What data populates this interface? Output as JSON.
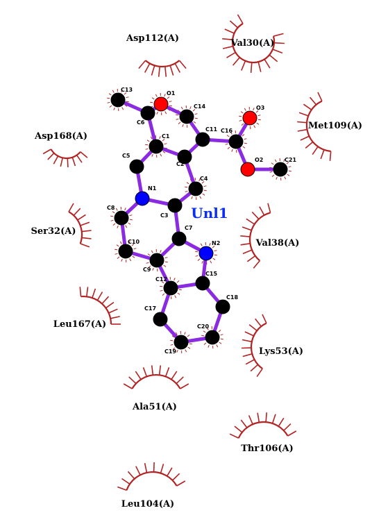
{
  "ligand": {
    "name": "Unl1",
    "color": "#0b2ff0"
  },
  "colors": {
    "bond": "#8a2be2",
    "carbon": "#000000",
    "oxygen": "#ff0000",
    "nitrogen": "#0000ff",
    "hydrophobic": "#b22222"
  },
  "atoms": [
    {
      "id": "C13",
      "label": "C13",
      "element": "C"
    },
    {
      "id": "O1",
      "label": "O1",
      "element": "O"
    },
    {
      "id": "C14",
      "label": "C14",
      "element": "C"
    },
    {
      "id": "C6",
      "label": "C6",
      "element": "C"
    },
    {
      "id": "C1",
      "label": "C1",
      "element": "C"
    },
    {
      "id": "C11",
      "label": "C11",
      "element": "C"
    },
    {
      "id": "C16",
      "label": "C16",
      "element": "C"
    },
    {
      "id": "O3",
      "label": "O3",
      "element": "O"
    },
    {
      "id": "O2",
      "label": "O2",
      "element": "O"
    },
    {
      "id": "C21",
      "label": "C21",
      "element": "C"
    },
    {
      "id": "C5",
      "label": "C5",
      "element": "C"
    },
    {
      "id": "C2",
      "label": "C2",
      "element": "C"
    },
    {
      "id": "C4",
      "label": "C4",
      "element": "C"
    },
    {
      "id": "N1",
      "label": "N1",
      "element": "N"
    },
    {
      "id": "C3",
      "label": "C3",
      "element": "C"
    },
    {
      "id": "C8",
      "label": "C8",
      "element": "C"
    },
    {
      "id": "C7",
      "label": "C7",
      "element": "C"
    },
    {
      "id": "N2",
      "label": "N2",
      "element": "N"
    },
    {
      "id": "C10",
      "label": "C10",
      "element": "C"
    },
    {
      "id": "C9",
      "label": "C9",
      "element": "C"
    },
    {
      "id": "C12",
      "label": "C12",
      "element": "C"
    },
    {
      "id": "C15",
      "label": "C15",
      "element": "C"
    },
    {
      "id": "C18",
      "label": "C18",
      "element": "C"
    },
    {
      "id": "C17",
      "label": "C17",
      "element": "C"
    },
    {
      "id": "C20",
      "label": "C20",
      "element": "C"
    },
    {
      "id": "C19",
      "label": "C19",
      "element": "C"
    }
  ],
  "residues": [
    {
      "id": "asp112",
      "label": "Asp112(A)"
    },
    {
      "id": "val30",
      "label": "Val30(A)"
    },
    {
      "id": "met109",
      "label": "Met109(A)"
    },
    {
      "id": "asp168",
      "label": "Asp168(A)"
    },
    {
      "id": "ser32",
      "label": "Ser32(A)"
    },
    {
      "id": "val38",
      "label": "Val38(A)"
    },
    {
      "id": "leu167",
      "label": "Leu167(A)"
    },
    {
      "id": "lys53",
      "label": "Lys53(A)"
    },
    {
      "id": "ala51",
      "label": "Ala51(A)"
    },
    {
      "id": "thr106",
      "label": "Thr106(A)"
    },
    {
      "id": "leu104",
      "label": "Leu104(A)"
    }
  ]
}
